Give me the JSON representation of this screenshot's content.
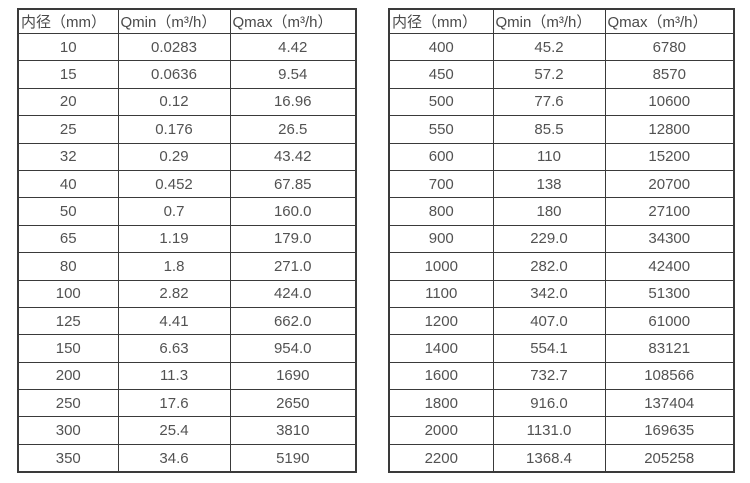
{
  "page": {
    "background_color": "#ffffff",
    "text_color": "#525252",
    "border_color": "#3a3a3a"
  },
  "tables": [
    {
      "name": "flow-spec-table-small-diameters",
      "headers": [
        "内径（mm）",
        "Qmin（m³/h）",
        "Qmax（m³/h）"
      ],
      "rows": [
        [
          "10",
          "0.0283",
          "4.42"
        ],
        [
          "15",
          "0.0636",
          "9.54"
        ],
        [
          "20",
          "0.12",
          "16.96"
        ],
        [
          "25",
          "0.176",
          "26.5"
        ],
        [
          "32",
          "0.29",
          "43.42"
        ],
        [
          "40",
          "0.452",
          "67.85"
        ],
        [
          "50",
          "0.7",
          "160.0"
        ],
        [
          "65",
          "1.19",
          "179.0"
        ],
        [
          "80",
          "1.8",
          "271.0"
        ],
        [
          "100",
          "2.82",
          "424.0"
        ],
        [
          "125",
          "4.41",
          "662.0"
        ],
        [
          "150",
          "6.63",
          "954.0"
        ],
        [
          "200",
          "11.3",
          "1690"
        ],
        [
          "250",
          "17.6",
          "2650"
        ],
        [
          "300",
          "25.4",
          "3810"
        ],
        [
          "350",
          "34.6",
          "5190"
        ]
      ]
    },
    {
      "name": "flow-spec-table-large-diameters",
      "headers": [
        "内径（mm）",
        "Qmin（m³/h）",
        "Qmax（m³/h）"
      ],
      "rows": [
        [
          "400",
          "45.2",
          "6780"
        ],
        [
          "450",
          "57.2",
          "8570"
        ],
        [
          "500",
          "77.6",
          "10600"
        ],
        [
          "550",
          "85.5",
          "12800"
        ],
        [
          "600",
          "110",
          "15200"
        ],
        [
          "700",
          "138",
          "20700"
        ],
        [
          "800",
          "180",
          "27100"
        ],
        [
          "900",
          "229.0",
          "34300"
        ],
        [
          "1000",
          "282.0",
          "42400"
        ],
        [
          "1100",
          "342.0",
          "51300"
        ],
        [
          "1200",
          "407.0",
          "61000"
        ],
        [
          "1400",
          "554.1",
          "83121"
        ],
        [
          "1600",
          "732.7",
          "108566"
        ],
        [
          "1800",
          "916.0",
          "137404"
        ],
        [
          "2000",
          "1131.0",
          "169635"
        ],
        [
          "2200",
          "1368.4",
          "205258"
        ]
      ]
    }
  ]
}
